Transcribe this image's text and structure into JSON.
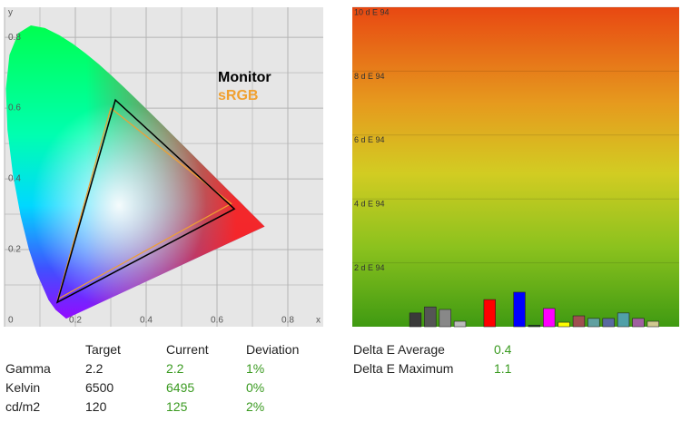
{
  "chart_data": [
    {
      "type": "gamut",
      "xlabel": "x",
      "ylabel": "y",
      "xlim": [
        0,
        0.9
      ],
      "ylim": [
        0,
        0.885
      ],
      "xticks": [
        0,
        0.2,
        0.4,
        0.6,
        0.8
      ],
      "yticks": [
        0.2,
        0.4,
        0.6,
        0.8
      ],
      "minor_xticks": [
        0.1,
        0.3,
        0.5,
        0.7
      ],
      "minor_yticks": [
        0.1,
        0.3,
        0.5,
        0.7
      ],
      "grid": true,
      "series": [
        {
          "name": "Monitor",
          "color": "#000000",
          "x": [
            0.313,
            0.649,
            0.149
          ],
          "y": [
            0.623,
            0.315,
            0.051
          ]
        },
        {
          "name": "sRGB",
          "color": "#f0a030",
          "x": [
            0.3,
            0.64,
            0.15
          ],
          "y": [
            0.6,
            0.33,
            0.06
          ]
        }
      ]
    },
    {
      "type": "bar",
      "ylim": [
        0,
        10
      ],
      "yticks": [
        {
          "value": 2,
          "label": "2 d E 94"
        },
        {
          "value": 4,
          "label": "4 d E 94"
        },
        {
          "value": 6,
          "label": "6 d E 94"
        },
        {
          "value": 8,
          "label": "8 d E 94"
        },
        {
          "value": 10,
          "label": "10 d E 94"
        }
      ],
      "grid": true,
      "values": [
        0,
        0,
        0,
        0,
        0.43,
        0.62,
        0.54,
        0.17,
        0,
        0.85,
        0,
        1.08,
        0.05,
        0.57,
        0.14,
        0.34,
        0.26,
        0.26,
        0.43,
        0.26,
        0.17,
        0
      ],
      "colors": [
        "#ffffff",
        "#ffffff",
        "#ffffff",
        "#ffffff",
        "#3a3a3a",
        "#555555",
        "#888888",
        "#bbbbbb",
        "#ffffff",
        "#ff0000",
        "#ffffff",
        "#0000ff",
        "#1a4a1a",
        "#ff00ff",
        "#ffff00",
        "#a05050",
        "#60a0a0",
        "#5a6aa0",
        "#50a0a8",
        "#a060a0",
        "#d0c890",
        "#ffffff"
      ]
    }
  ],
  "calibration_table": {
    "header": [
      "Target",
      "Current",
      "Deviation"
    ],
    "rows": [
      [
        "Gamma",
        "2.2",
        "2.2",
        "1%"
      ],
      [
        "Kelvin",
        "6500",
        "6495",
        "0%"
      ],
      [
        "cd/m2",
        "120",
        "125",
        "2%"
      ]
    ]
  },
  "delta_e_table": {
    "rows": [
      [
        "Delta E Average",
        "0.4"
      ],
      [
        "Delta E Maximum",
        "1.1"
      ]
    ]
  }
}
